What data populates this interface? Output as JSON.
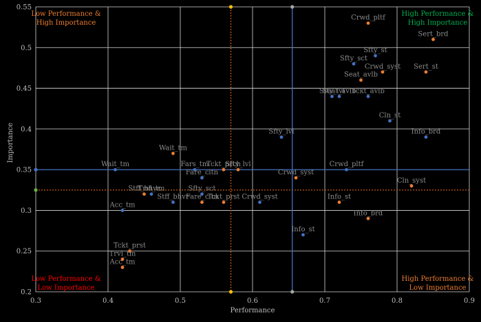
{
  "chart_data": {
    "type": "scatter",
    "title": "",
    "xlabel": "Performance",
    "ylabel": "Importance",
    "xlim": [
      0.3,
      0.9
    ],
    "ylim": [
      0.2,
      0.55
    ],
    "xticks": [
      "0.3",
      "0.4",
      "0.5",
      "0.6",
      "0.7",
      "0.8",
      "0.9"
    ],
    "yticks": [
      "0.2",
      "0.25",
      "0.3",
      "0.35",
      "0.4",
      "0.45",
      "0.5",
      "0.55"
    ],
    "grid": true,
    "legend": "none",
    "colors": {
      "background": "#000000",
      "grid": "#d9d9d9",
      "series_blue": "#4472c4",
      "series_orange": "#ed7d31",
      "label": "#8c8c8c",
      "quad_red": "#ff0000",
      "quad_orange": "#ed7d31",
      "quad_green": "#00b050",
      "mean_line_orange": "#c55a11",
      "marker_green": "#70ad47",
      "marker_gray": "#a6a6a6"
    },
    "reference_lines": {
      "blue": {
        "x": 0.655,
        "y": 0.35
      },
      "orange_dotted": {
        "x": 0.57,
        "y": 0.325
      }
    },
    "quadrant_labels": {
      "top_left": [
        "Low Performance &",
        "High Importance"
      ],
      "top_right": [
        "High Performance &",
        "High Importance"
      ],
      "bottom_left": [
        "Low Performance &",
        "Low Importance"
      ],
      "bottom_right": [
        "High Performance &",
        "Low Importance"
      ]
    },
    "series": [
      {
        "color": "blue",
        "points": [
          {
            "label": "Wait_tm",
            "x": 0.41,
            "y": 0.35
          },
          {
            "label": "Trvl_tm",
            "x": 0.46,
            "y": 0.32
          },
          {
            "label": "Acc_tm",
            "x": 0.42,
            "y": 0.3
          },
          {
            "label": "Stff_bhvr",
            "x": 0.49,
            "y": 0.31
          },
          {
            "label": "Fare_cltn",
            "x": 0.53,
            "y": 0.34
          },
          {
            "label": "Fars_tm",
            "x": 0.52,
            "y": 0.35
          },
          {
            "label": "Sfty_sct",
            "x": 0.53,
            "y": 0.32
          },
          {
            "label": "Crwd_syst",
            "x": 0.61,
            "y": 0.31
          },
          {
            "label": "Sfty_lvl",
            "x": 0.64,
            "y": 0.39
          },
          {
            "label": "Crwd_pltf",
            "x": 0.73,
            "y": 0.35
          },
          {
            "label": "Info_st",
            "x": 0.67,
            "y": 0.27
          },
          {
            "label": "Sfty_lvl",
            "x": 0.71,
            "y": 0.44
          },
          {
            "label": "Seat_avlb",
            "x": 0.72,
            "y": 0.44
          },
          {
            "label": "Tckt_avlb",
            "x": 0.76,
            "y": 0.44
          },
          {
            "label": "Sfty_sct",
            "x": 0.74,
            "y": 0.48
          },
          {
            "label": "Cln_st",
            "x": 0.79,
            "y": 0.41
          },
          {
            "label": "Info_brd",
            "x": 0.84,
            "y": 0.39
          },
          {
            "label": "Sfty_st",
            "x": 0.77,
            "y": 0.49
          }
        ]
      },
      {
        "color": "orange",
        "points": [
          {
            "label": "Wait_tm",
            "x": 0.49,
            "y": 0.37
          },
          {
            "label": "Stff_bhvr",
            "x": 0.45,
            "y": 0.32
          },
          {
            "label": "Tckt_prst",
            "x": 0.43,
            "y": 0.25
          },
          {
            "label": "Trvl_tm",
            "x": 0.42,
            "y": 0.24
          },
          {
            "label": "Acc_tm",
            "x": 0.42,
            "y": 0.23
          },
          {
            "label": "Tckt_prch",
            "x": 0.56,
            "y": 0.35
          },
          {
            "label": "Sfty_lvl",
            "x": 0.58,
            "y": 0.35
          },
          {
            "label": "Fare_cltn",
            "x": 0.53,
            "y": 0.31
          },
          {
            "label": "Tckt_prst",
            "x": 0.56,
            "y": 0.31
          },
          {
            "label": "Crwd_syst",
            "x": 0.66,
            "y": 0.34
          },
          {
            "label": "Info_st",
            "x": 0.72,
            "y": 0.31
          },
          {
            "label": "Info_brd",
            "x": 0.76,
            "y": 0.29
          },
          {
            "label": "Cln_syst",
            "x": 0.82,
            "y": 0.33
          },
          {
            "label": "Crwd_pltf",
            "x": 0.76,
            "y": 0.53
          },
          {
            "label": "Crwd_syst",
            "x": 0.78,
            "y": 0.47
          },
          {
            "label": "Seat_avlb",
            "x": 0.75,
            "y": 0.46
          },
          {
            "label": "Sert_st",
            "x": 0.84,
            "y": 0.47
          },
          {
            "label": "Sert_brd",
            "x": 0.85,
            "y": 0.51
          }
        ]
      }
    ]
  }
}
